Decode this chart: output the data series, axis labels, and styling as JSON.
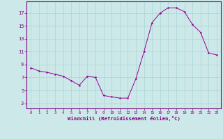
{
  "x_vals": [
    0,
    1,
    2,
    3,
    4,
    5,
    6,
    7,
    8,
    9,
    10,
    11,
    12,
    13,
    14,
    15,
    16,
    17,
    18,
    19,
    20,
    21,
    22,
    23
  ],
  "y_vals": [
    8.5,
    8.0,
    7.8,
    7.5,
    7.2,
    6.5,
    5.8,
    7.2,
    7.0,
    4.2,
    4.0,
    3.8,
    3.8,
    6.8,
    11.0,
    15.5,
    17.0,
    17.8,
    17.8,
    17.2,
    15.2,
    14.0,
    10.8,
    10.5
  ],
  "line_color": "#990099",
  "marker_color": "#990099",
  "bg_color": "#cce8e8",
  "grid_color": "#aad4d4",
  "xlabel": "Windchill (Refroidissement éolien,°C)",
  "ytick_labels": [
    "3",
    "5",
    "7",
    "9",
    "11",
    "13",
    "15",
    "17"
  ],
  "ytick_vals": [
    3,
    5,
    7,
    9,
    11,
    13,
    15,
    17
  ],
  "xlim": [
    -0.5,
    23.5
  ],
  "ylim": [
    2.2,
    18.8
  ],
  "axis_color": "#800080",
  "tick_color": "#800080",
  "label_color": "#800080"
}
